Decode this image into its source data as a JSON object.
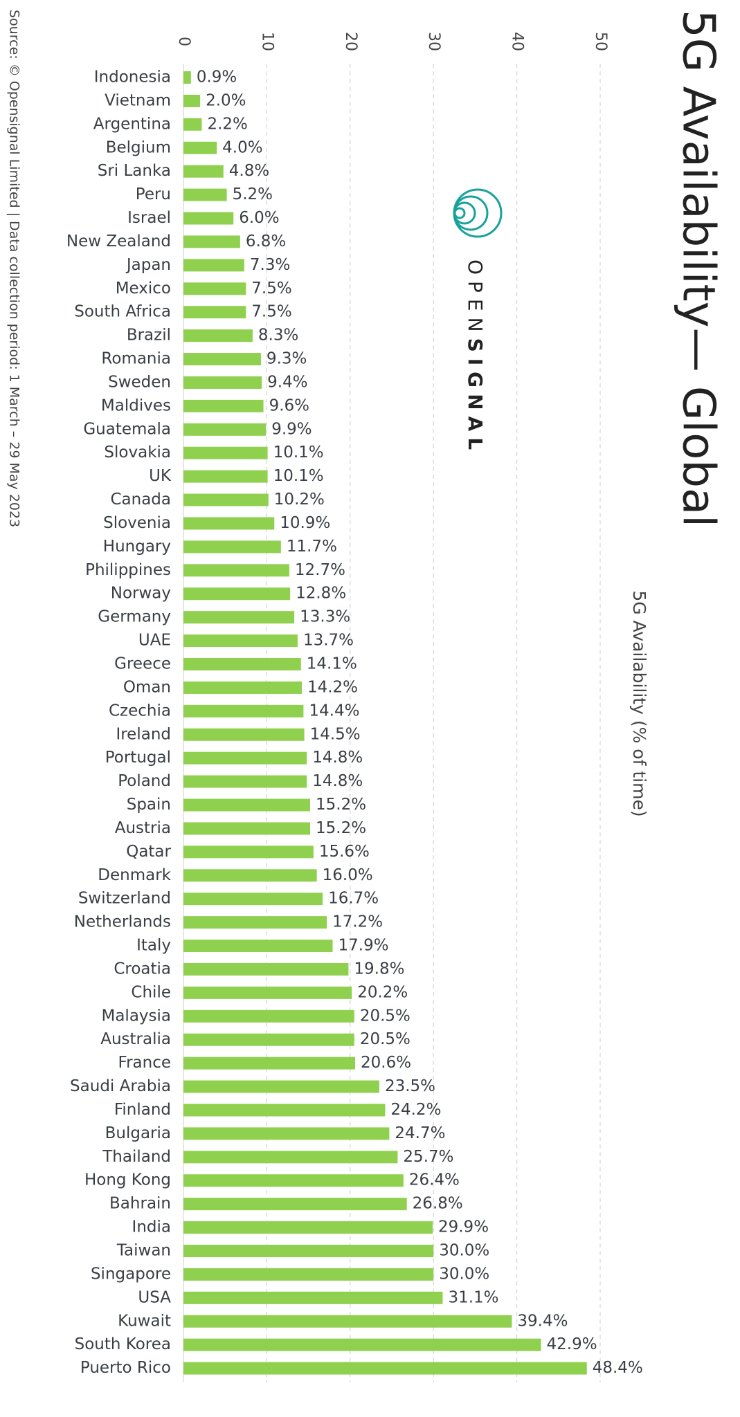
{
  "chart_data": {
    "type": "bar",
    "orientation": "horizontal",
    "title": "5G Availability— Global",
    "x_label": "5G Availability (% of time)",
    "source": "Source: © Opensignal Limited  |  Data collection period: 1 March – 29 May 2023",
    "logo": {
      "open": "OPEN",
      "signal": "SIGNAL"
    },
    "categories": [
      "Indonesia",
      "Vietnam",
      "Argentina",
      "Belgium",
      "Sri Lanka",
      "Peru",
      "Israel",
      "New Zealand",
      "Japan",
      "Mexico",
      "South Africa",
      "Brazil",
      "Romania",
      "Sweden",
      "Maldives",
      "Guatemala",
      "Slovakia",
      "UK",
      "Canada",
      "Slovenia",
      "Hungary",
      "Philippines",
      "Norway",
      "Germany",
      "UAE",
      "Greece",
      "Oman",
      "Czechia",
      "Ireland",
      "Portugal",
      "Poland",
      "Spain",
      "Austria",
      "Qatar",
      "Denmark",
      "Switzerland",
      "Netherlands",
      "Italy",
      "Croatia",
      "Chile",
      "Malaysia",
      "Australia",
      "France",
      "Saudi Arabia",
      "Finland",
      "Bulgaria",
      "Thailand",
      "Hong Kong",
      "Bahrain",
      "India",
      "Taiwan",
      "Singapore",
      "USA",
      "Kuwait",
      "South Korea",
      "Puerto Rico"
    ],
    "values": [
      0.9,
      2.0,
      2.2,
      4.0,
      4.8,
      5.2,
      6.0,
      6.8,
      7.3,
      7.5,
      7.5,
      8.3,
      9.3,
      9.4,
      9.6,
      9.9,
      10.1,
      10.1,
      10.2,
      10.9,
      11.7,
      12.7,
      12.8,
      13.3,
      13.7,
      14.1,
      14.2,
      14.4,
      14.5,
      14.8,
      14.8,
      15.2,
      15.2,
      15.6,
      16.0,
      16.7,
      17.2,
      17.9,
      19.8,
      20.2,
      20.5,
      20.5,
      20.6,
      23.5,
      24.2,
      24.7,
      25.7,
      26.4,
      26.8,
      29.9,
      30.0,
      30.0,
      31.1,
      39.4,
      42.9,
      48.4
    ],
    "value_labels": [
      "0.9%",
      "2.0%",
      "2.2%",
      "4.0%",
      "4.8%",
      "5.2%",
      "6.0%",
      "6.8%",
      "7.3%",
      "7.5%",
      "7.5%",
      "8.3%",
      "9.3%",
      "9.4%",
      "9.6%",
      "9.9%",
      "10.1%",
      "10.1%",
      "10.2%",
      "10.9%",
      "11.7%",
      "12.7%",
      "12.8%",
      "13.3%",
      "13.7%",
      "14.1%",
      "14.2%",
      "14.4%",
      "14.5%",
      "14.8%",
      "14.8%",
      "15.2%",
      "15.2%",
      "15.6%",
      "16.0%",
      "16.7%",
      "17.2%",
      "17.9%",
      "19.8%",
      "20.2%",
      "20.5%",
      "20.5%",
      "20.6%",
      "23.5%",
      "24.2%",
      "24.7%",
      "25.7%",
      "26.4%",
      "26.8%",
      "29.9%",
      "30.0%",
      "30.0%",
      "31.1%",
      "39.4%",
      "42.9%",
      "48.4%"
    ],
    "color": "#8fd14f",
    "xlim": [
      0,
      50
    ],
    "xticks": [
      0,
      10,
      20,
      30,
      40,
      50
    ],
    "grid": true
  }
}
